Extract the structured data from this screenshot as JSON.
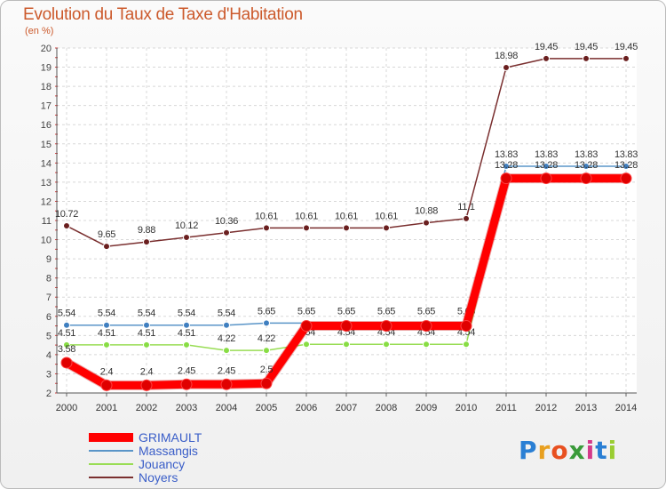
{
  "header": {
    "title": "Evolution du Taux de Taxe d'Habitation",
    "unit": "(en %)"
  },
  "chart_data": {
    "type": "line",
    "title": "Evolution du Taux de Taxe d'Habitation",
    "ylabel": "(en %)",
    "xlabel": "",
    "ylim": [
      2,
      20
    ],
    "yticks": [
      "2",
      "3",
      "4",
      "5",
      "6",
      "7",
      "8",
      "9",
      "10",
      "11",
      "12",
      "13",
      "14",
      "15",
      "16",
      "17",
      "18",
      "19",
      "20"
    ],
    "x": [
      "2000",
      "2001",
      "2002",
      "2003",
      "2004",
      "2005",
      "2006",
      "2007",
      "2008",
      "2009",
      "2010",
      "2011",
      "2012",
      "2013",
      "2014"
    ],
    "grid": true,
    "legend_position": "bottom-left",
    "series": [
      {
        "name": "Noyers",
        "color": "#7a2f2f",
        "values": [
          10.72,
          9.65,
          9.88,
          10.12,
          10.36,
          10.61,
          10.61,
          10.61,
          10.61,
          10.88,
          11.1,
          18.98,
          19.45,
          19.45,
          19.45
        ],
        "labels": [
          "10.72",
          "9.65",
          "9.88",
          "10.12",
          "10.36",
          "10.61",
          "10.61",
          "10.61",
          "10.61",
          "10.88",
          "11.1",
          "18.98",
          "19.45",
          "19.45",
          "19.45"
        ]
      },
      {
        "name": "Massangis",
        "color": "#5a95c8",
        "values": [
          5.54,
          5.54,
          5.54,
          5.54,
          5.54,
          5.65,
          5.65,
          5.65,
          5.65,
          5.65,
          5.65,
          13.83,
          13.83,
          13.83,
          13.83
        ],
        "labels": [
          "5.54",
          "5.54",
          "5.54",
          "5.54",
          "5.54",
          "5.65",
          "5.65",
          "5.65",
          "5.65",
          "5.65",
          "5.65",
          "13.83",
          "13.83",
          "13.83",
          "13.83"
        ]
      },
      {
        "name": "Jouancy",
        "color": "#99dd55",
        "values": [
          4.51,
          4.51,
          4.51,
          4.51,
          4.22,
          4.22,
          4.54,
          4.54,
          4.54,
          4.54,
          4.54,
          13.28,
          13.28,
          13.28,
          13.28
        ],
        "labels": [
          "4.51",
          "4.51",
          "4.51",
          "4.51",
          "4.22",
          "4.22",
          "4.54",
          "4.54",
          "4.54",
          "4.54",
          "4.54",
          "13.28",
          "13.28",
          "13.28",
          "13.28"
        ]
      },
      {
        "name": "GRIMAULT",
        "color": "#ff0000",
        "values": [
          3.58,
          2.4,
          2.4,
          2.45,
          2.45,
          2.5,
          5.5,
          5.5,
          5.5,
          5.5,
          5.5,
          13.2,
          13.2,
          13.2,
          13.2
        ],
        "labels": [
          "3.58",
          "2.4",
          "2.4",
          "2.45",
          "2.45",
          "2.5",
          "",
          "",
          "",
          "",
          "",
          "",
          "",
          "",
          ""
        ]
      }
    ]
  },
  "legend": {
    "items": [
      {
        "name": "GRIMAULT",
        "color": "#ff0000"
      },
      {
        "name": "Massangis",
        "color": "#5a95c8"
      },
      {
        "name": "Jouancy",
        "color": "#99dd55"
      },
      {
        "name": "Noyers",
        "color": "#7a2f2f"
      }
    ]
  },
  "logo": {
    "letters": [
      "P",
      "r",
      "o",
      "x",
      "i",
      "t",
      "i"
    ],
    "colors": [
      "#2a7fd4",
      "#e8a020",
      "#e85020",
      "#3a9a3a",
      "#d43a8a",
      "#2a7fd4",
      "#9acd32"
    ]
  }
}
